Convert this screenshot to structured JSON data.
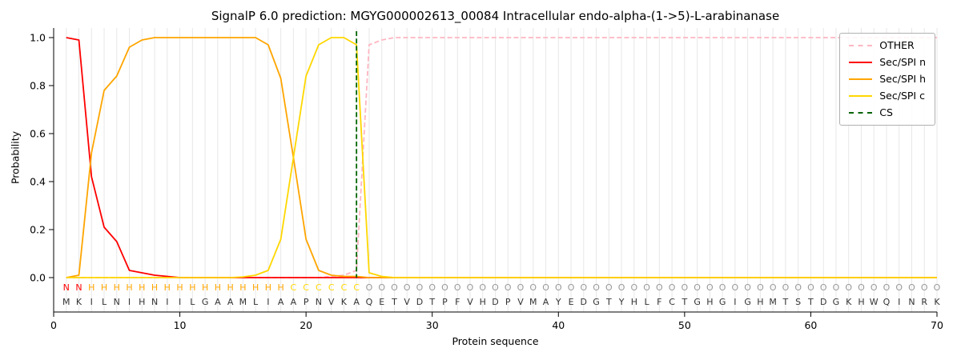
{
  "chart_data": {
    "type": "line",
    "title": "SignalP 6.0 prediction: MGYG000002613_00084 Intracellular endo-alpha-(1->5)-L-arabinanase",
    "xlabel": "Protein sequence",
    "ylabel": "Probability",
    "xlim": [
      0,
      70
    ],
    "ylim": [
      0.0,
      1.0
    ],
    "xticks": [
      0,
      10,
      20,
      30,
      40,
      50,
      60,
      70
    ],
    "yticks": [
      "0.0",
      "0.2",
      "0.4",
      "0.6",
      "0.8",
      "1.0"
    ],
    "grid": "vertical-per-residue",
    "legend_position": "upper right",
    "colors": {
      "grid": "#e7e7e7",
      "axis": "#000000",
      "sequence_text": "#333333"
    },
    "state_colors": {
      "N": "#ff0000",
      "H": "#ffa500",
      "C": "#ffd700",
      "O": "#989898"
    },
    "cs": {
      "label": "CS",
      "position": 24,
      "color": "#006400",
      "dash": "dashed"
    },
    "sequence": [
      "M",
      "K",
      "I",
      "L",
      "N",
      "I",
      "H",
      "N",
      "I",
      "I",
      "L",
      "G",
      "A",
      "A",
      "M",
      "L",
      "I",
      "A",
      "A",
      "P",
      "N",
      "V",
      "K",
      "A",
      "Q",
      "E",
      "T",
      "V",
      "D",
      "T",
      "P",
      "F",
      "V",
      "H",
      "D",
      "P",
      "V",
      "M",
      "A",
      "Y",
      "E",
      "D",
      "G",
      "T",
      "Y",
      "H",
      "L",
      "F",
      "C",
      "T",
      "G",
      "H",
      "G",
      "I",
      "G",
      "H",
      "M",
      "T",
      "S",
      "T",
      "D",
      "G",
      "K",
      "H",
      "W",
      "Q",
      "I",
      "N",
      "R",
      "K"
    ],
    "state_labels": [
      "N",
      "N",
      "H",
      "H",
      "H",
      "H",
      "H",
      "H",
      "H",
      "H",
      "H",
      "H",
      "H",
      "H",
      "H",
      "H",
      "H",
      "H",
      "C",
      "C",
      "C",
      "C",
      "C",
      "C",
      "O",
      "O",
      "O",
      "O",
      "O",
      "O",
      "O",
      "O",
      "O",
      "O",
      "O",
      "O",
      "O",
      "O",
      "O",
      "O",
      "O",
      "O",
      "O",
      "O",
      "O",
      "O",
      "O",
      "O",
      "O",
      "O",
      "O",
      "O",
      "O",
      "O",
      "O",
      "O",
      "O",
      "O",
      "O",
      "O",
      "O",
      "O",
      "O",
      "O",
      "O",
      "O",
      "O",
      "O",
      "O",
      "O"
    ],
    "series": [
      {
        "name": "OTHER",
        "color": "#ffb6c1",
        "dash": "dashed",
        "values": [
          0,
          0,
          0,
          0,
          0,
          0,
          0,
          0,
          0,
          0,
          0,
          0,
          0,
          0,
          0,
          0,
          0,
          0,
          0,
          0,
          0,
          0.005,
          0.01,
          0.03,
          0.97,
          0.99,
          1,
          1,
          1,
          1,
          1,
          1,
          1,
          1,
          1,
          1,
          1,
          1,
          1,
          1,
          1,
          1,
          1,
          1,
          1,
          1,
          1,
          1,
          1,
          1,
          1,
          1,
          1,
          1,
          1,
          1,
          1,
          1,
          1,
          1,
          1,
          1,
          1,
          1,
          1,
          1,
          1,
          1,
          1,
          1
        ]
      },
      {
        "name": "Sec/SPI n",
        "color": "#ff0000",
        "dash": "solid",
        "values": [
          1,
          0.99,
          0.42,
          0.21,
          0.15,
          0.03,
          0.02,
          0.01,
          0.005,
          0,
          0,
          0,
          0,
          0,
          0,
          0,
          0,
          0,
          0,
          0,
          0,
          0,
          0,
          0,
          0,
          0,
          0,
          0,
          0,
          0,
          0,
          0,
          0,
          0,
          0,
          0,
          0,
          0,
          0,
          0,
          0,
          0,
          0,
          0,
          0,
          0,
          0,
          0,
          0,
          0,
          0,
          0,
          0,
          0,
          0,
          0,
          0,
          0,
          0,
          0,
          0,
          0,
          0,
          0,
          0,
          0,
          0,
          0,
          0,
          0
        ]
      },
      {
        "name": "Sec/SPI h",
        "color": "#ffa500",
        "dash": "solid",
        "values": [
          0,
          0.01,
          0.52,
          0.78,
          0.84,
          0.96,
          0.99,
          1,
          1,
          1,
          1,
          1,
          1,
          1,
          1,
          1,
          0.97,
          0.83,
          0.5,
          0.16,
          0.03,
          0.01,
          0.005,
          0.005,
          0,
          0,
          0,
          0,
          0,
          0,
          0,
          0,
          0,
          0,
          0,
          0,
          0,
          0,
          0,
          0,
          0,
          0,
          0,
          0,
          0,
          0,
          0,
          0,
          0,
          0,
          0,
          0,
          0,
          0,
          0,
          0,
          0,
          0,
          0,
          0,
          0,
          0,
          0,
          0,
          0,
          0,
          0,
          0,
          0,
          0
        ]
      },
      {
        "name": "Sec/SPI c",
        "color": "#ffd700",
        "dash": "solid",
        "values": [
          0,
          0,
          0,
          0,
          0,
          0,
          0,
          0,
          0,
          0,
          0,
          0,
          0,
          0,
          0.003,
          0.01,
          0.03,
          0.16,
          0.5,
          0.84,
          0.97,
          1,
          1,
          0.97,
          0.02,
          0.005,
          0,
          0,
          0,
          0,
          0,
          0,
          0,
          0,
          0,
          0,
          0,
          0,
          0,
          0,
          0,
          0,
          0,
          0,
          0,
          0,
          0,
          0,
          0,
          0,
          0,
          0,
          0,
          0,
          0,
          0,
          0,
          0,
          0,
          0,
          0,
          0,
          0,
          0,
          0,
          0,
          0,
          0,
          0,
          0
        ]
      }
    ]
  }
}
